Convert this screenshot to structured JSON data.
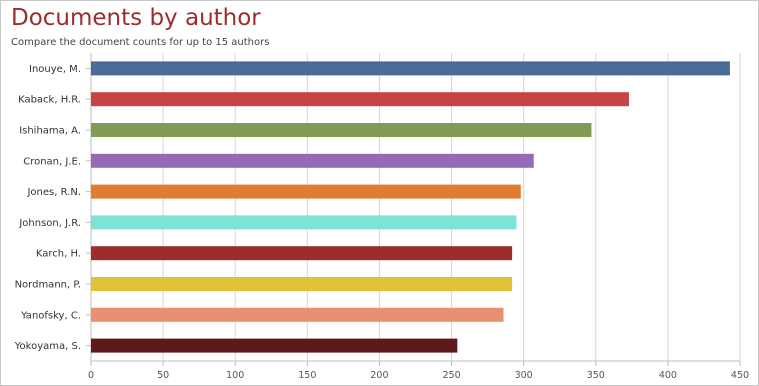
{
  "header": {
    "title": "Documents by author",
    "subtitle": "Compare the document counts for up to 15 authors"
  },
  "chart_data": {
    "type": "bar",
    "orientation": "horizontal",
    "title": "Documents by author",
    "subtitle": "Compare the document counts for up to 15 authors",
    "xlabel": "",
    "ylabel": "",
    "categories": [
      "Inouye, M.",
      "Kaback, H.R.",
      "Ishihama, A.",
      "Cronan, J.E.",
      "Jones, R.N.",
      "Johnson, J.R.",
      "Karch, H.",
      "Nordmann, P.",
      "Yanofsky, C.",
      "Yokoyama, S."
    ],
    "values": [
      443,
      373,
      347,
      307,
      298,
      295,
      292,
      292,
      286,
      254
    ],
    "colors": [
      "#4a6b96",
      "#c84444",
      "#809c54",
      "#946bb4",
      "#e07d30",
      "#7de3d4",
      "#a02b2b",
      "#e0c236",
      "#e89070",
      "#5e1a1a"
    ],
    "xlim": [
      0,
      450
    ],
    "xticks": [
      0,
      50,
      100,
      150,
      200,
      250,
      300,
      350,
      400,
      450
    ],
    "grid": true,
    "legend": "none"
  }
}
